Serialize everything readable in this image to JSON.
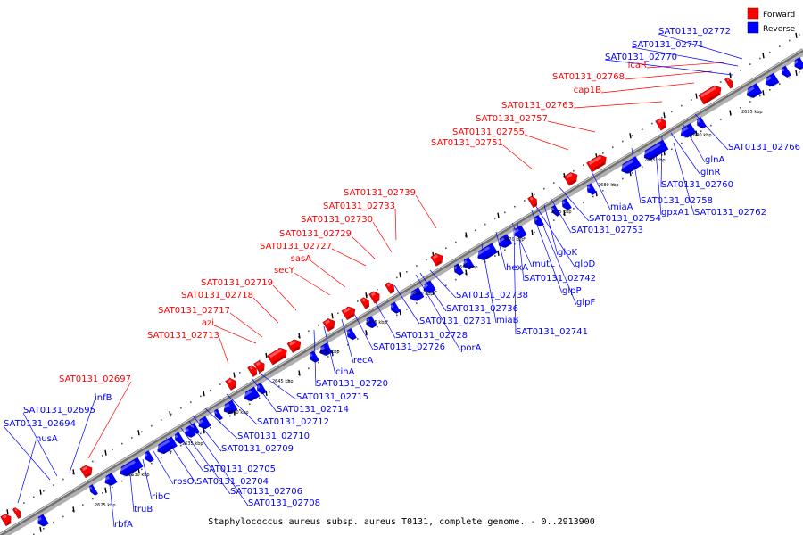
{
  "caption": "Staphylococcus aureus subsp. aureus T0131, complete genome. - 0..2913900",
  "legend": [
    {
      "label": "Forward",
      "color": "#ff0000"
    },
    {
      "label": "Reverse",
      "color": "#0000ff"
    }
  ],
  "colors": {
    "forward": "#ff0000",
    "reverse": "#0000ff",
    "axis": "#707070"
  },
  "ticks": [
    "2625 kbp",
    "2630 kbp",
    "2635 kbp",
    "2640 kbp",
    "2645 kbp",
    "2650 kbp",
    "2655 kbp",
    "2660 kbp",
    "2665 kbp",
    "2670 kbp",
    "2675 kbp",
    "2680 kbp",
    "2685 kbp",
    "2690 kbp",
    "2695 kbp"
  ],
  "forward_labels": [
    "SAT0131_02697",
    "SAT0131_02713",
    "azi",
    "SAT0131_02717",
    "SAT0131_02718",
    "SAT0131_02719",
    "secY",
    "sasA",
    "SAT0131_02727",
    "SAT0131_02729",
    "SAT0131_02730",
    "SAT0131_02733",
    "SAT0131_02739",
    "SAT0131_02751",
    "SAT0131_02755",
    "SAT0131_02757",
    "SAT0131_02763",
    "cap1B",
    "SAT0131_02768",
    "icaR"
  ],
  "reverse_labels": [
    "SAT0131_02772",
    "SAT0131_02771",
    "SAT0131_02770",
    "SAT0131_02766",
    "glnA",
    "glnR",
    "SAT0131_02760",
    "SAT0131_02758",
    "gpxA1",
    "SAT0131_02762",
    "miaA",
    "SAT0131_02754",
    "SAT0131_02753",
    "glpK",
    "glpD",
    "mutL",
    "hexA",
    "SAT0131_02742",
    "glpP",
    "glpF",
    "SAT0131_02738",
    "SAT0131_02736",
    "miaB",
    "SAT0131_02741",
    "SAT0131_02731",
    "SAT0131_02728",
    "porA",
    "SAT0131_02726",
    "recA",
    "cinA",
    "SAT0131_02720",
    "SAT0131_02715",
    "SAT0131_02714",
    "SAT0131_02712",
    "SAT0131_02710",
    "SAT0131_02709",
    "SAT0131_02705",
    "SAT0131_02704",
    "SAT0131_02706",
    "SAT0131_02708",
    "rpsO",
    "ribC",
    "truB",
    "rbfA",
    "infB",
    "SAT0131_02695",
    "SAT0131_02694",
    "nusA"
  ]
}
